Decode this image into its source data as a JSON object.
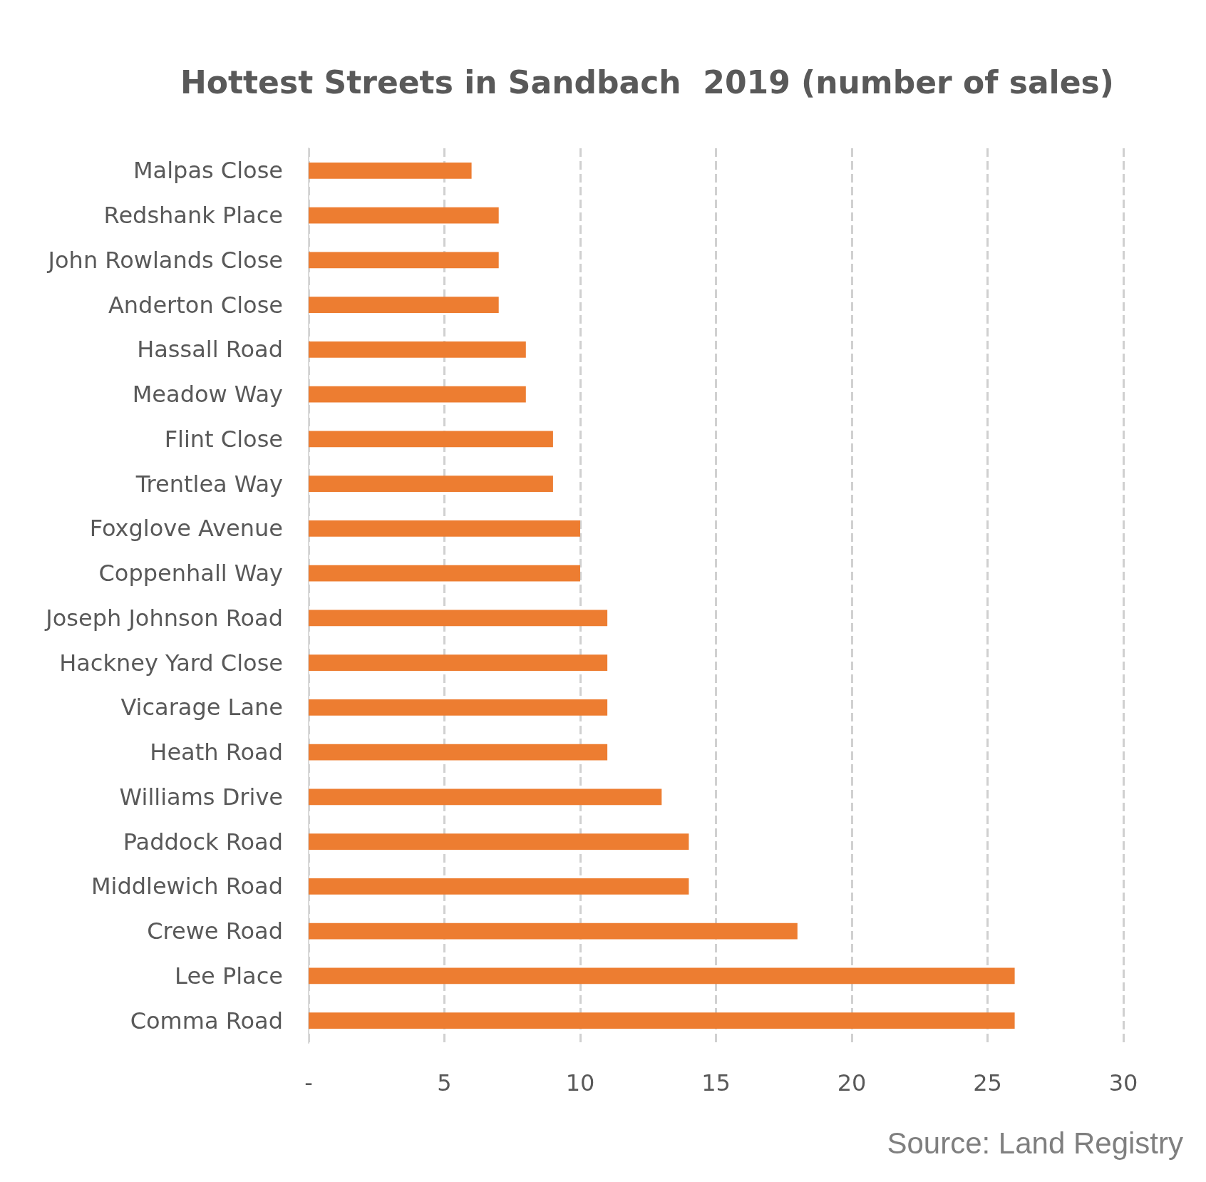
{
  "chart_data": {
    "type": "bar",
    "orientation": "horizontal",
    "title": "Hottest Streets in Sandbach  2019 (number of sales)",
    "categories": [
      "Malpas Close",
      "Redshank Place",
      "John Rowlands Close",
      "Anderton Close",
      "Hassall Road",
      "Meadow Way",
      "Flint Close",
      "Trentlea Way",
      "Foxglove Avenue",
      "Coppenhall Way",
      "Joseph Johnson Road",
      "Hackney Yard Close",
      "Vicarage Lane",
      "Heath Road",
      "Williams Drive",
      "Paddock Road",
      "Middlewich Road",
      "Crewe Road",
      "Lee Place",
      "Comma Road"
    ],
    "values": [
      6,
      7,
      7,
      7,
      8,
      8,
      9,
      9,
      10,
      10,
      11,
      11,
      11,
      11,
      13,
      14,
      14,
      18,
      26,
      26
    ],
    "color": "#ed7d31",
    "xlim": [
      0,
      30
    ],
    "xticks": [
      {
        "value": 0,
        "label": "-"
      },
      5,
      10,
      15,
      20,
      25,
      30
    ],
    "grid": "x",
    "annotations": [
      "Source: Land Registry"
    ]
  }
}
